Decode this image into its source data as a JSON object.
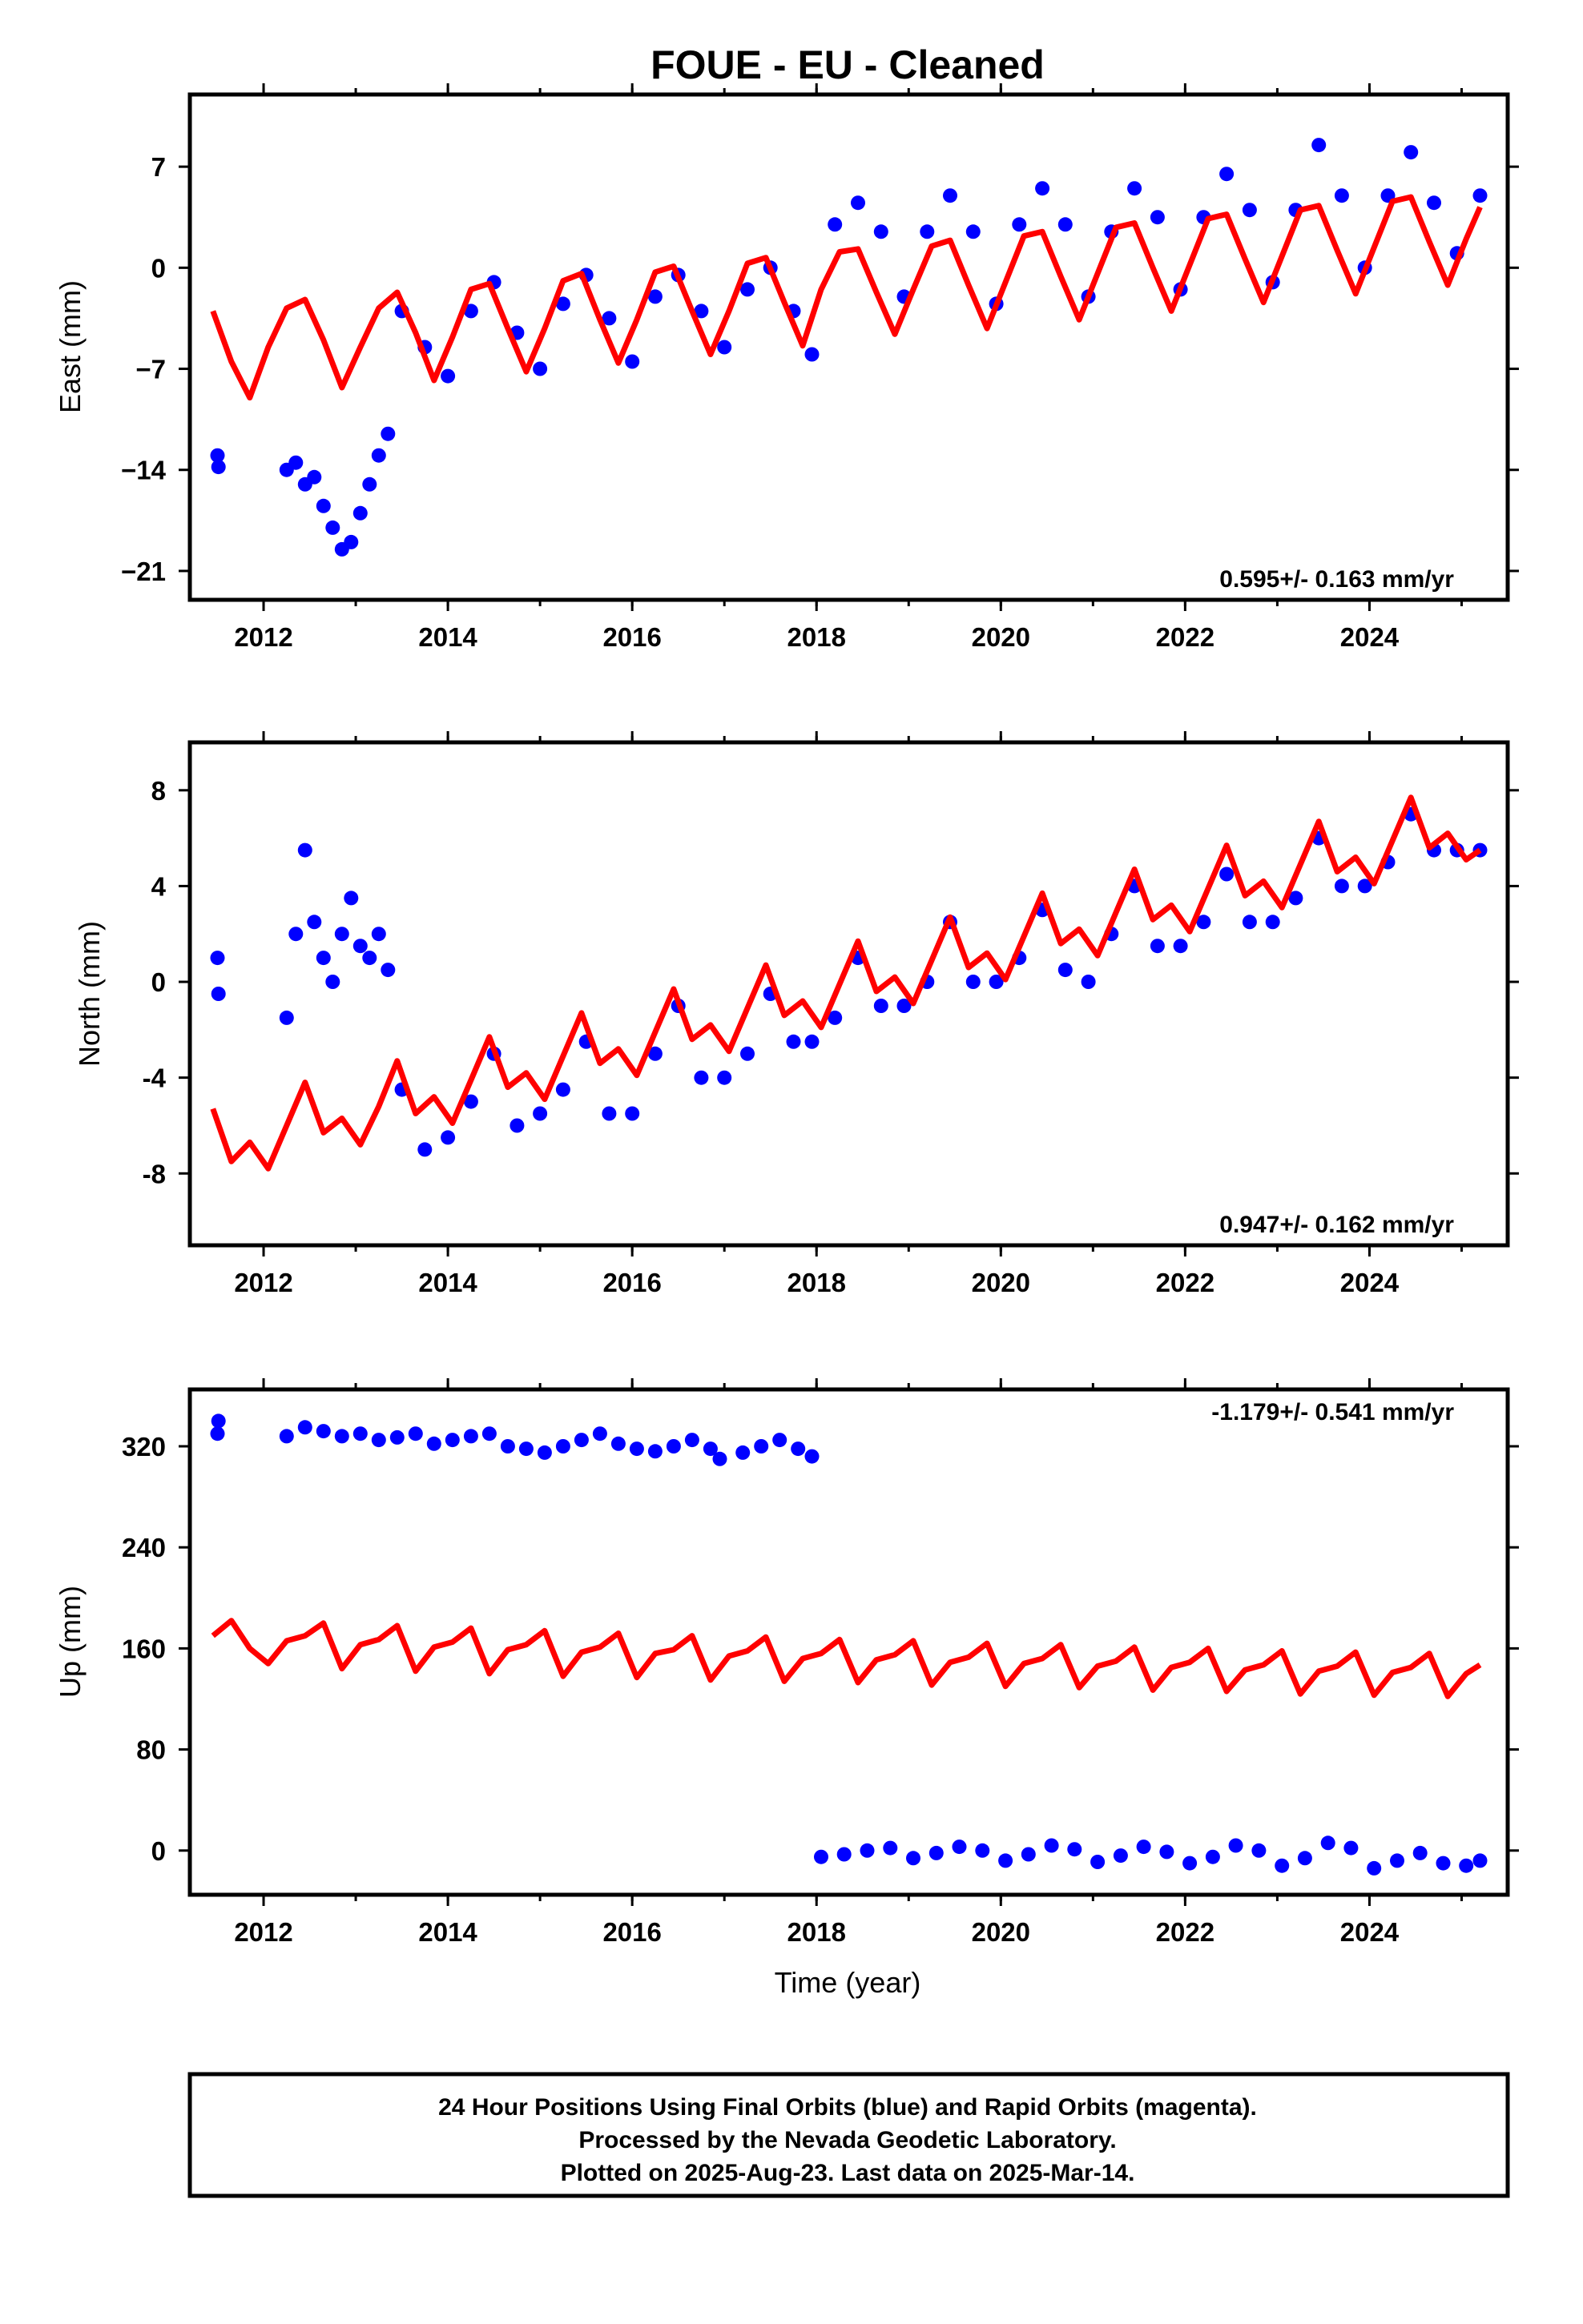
{
  "title": "FOUE  - EU - Cleaned",
  "colors": {
    "points": "#0000ff",
    "model": "#ff0000",
    "frame": "#000000"
  },
  "footer": {
    "line1": "24 Hour Positions Using Final Orbits (blue) and Rapid Orbits (magenta).",
    "line2": "Processed by the Nevada Geodetic Laboratory.",
    "line3": "Plotted on 2025-Aug-23. Last data on 2025-Mar-14."
  },
  "chart_data": [
    {
      "type": "scatter",
      "name": "east",
      "ylabel": "East (mm)",
      "xlabel": "",
      "xlim": [
        2011.2,
        2025.5
      ],
      "ylim": [
        -23,
        12
      ],
      "xticks": [
        2012,
        2014,
        2016,
        2018,
        2020,
        2022,
        2024
      ],
      "yticks": [
        7,
        0,
        -7,
        -14,
        -21
      ],
      "ytick_labels": [
        "7",
        "0",
        "−7",
        "−14",
        "−21"
      ],
      "rate_text": "0.595+/- 0.163 mm/yr",
      "rate_position": "bottom-right",
      "series": [
        {
          "name": "daily positions",
          "kind": "points",
          "x": [
            2011.5,
            2011.51,
            2012.25,
            2012.35,
            2012.45,
            2012.55,
            2012.65,
            2012.75,
            2012.85,
            2012.95,
            2013.05,
            2013.15,
            2013.25,
            2013.35,
            2013.5,
            2013.75,
            2014.0,
            2014.25,
            2014.5,
            2014.75,
            2015.0,
            2015.25,
            2015.5,
            2015.75,
            2016.0,
            2016.25,
            2016.5,
            2016.75,
            2017.0,
            2017.25,
            2017.5,
            2017.75,
            2017.95,
            2018.2,
            2018.45,
            2018.7,
            2018.95,
            2019.2,
            2019.45,
            2019.7,
            2019.95,
            2020.2,
            2020.45,
            2020.7,
            2020.95,
            2021.2,
            2021.45,
            2021.7,
            2021.95,
            2022.2,
            2022.45,
            2022.7,
            2022.95,
            2023.2,
            2023.45,
            2023.7,
            2023.95,
            2024.2,
            2024.45,
            2024.7,
            2024.95,
            2025.2
          ],
          "y": [
            -13.0,
            -13.8,
            -14.0,
            -13.5,
            -15.0,
            -14.5,
            -16.5,
            -18.0,
            -19.5,
            -19.0,
            -17.0,
            -15.0,
            -13.0,
            -11.5,
            -3.0,
            -5.5,
            -7.5,
            -3.0,
            -1.0,
            -4.5,
            -7.0,
            -2.5,
            -0.5,
            -3.5,
            -6.5,
            -2.0,
            -0.5,
            -3.0,
            -5.5,
            -1.5,
            0.0,
            -3.0,
            -6.0,
            3.0,
            4.5,
            2.5,
            -2.0,
            2.5,
            5.0,
            2.5,
            -2.5,
            3.0,
            5.5,
            3.0,
            -2.0,
            2.5,
            5.5,
            3.5,
            -1.5,
            3.5,
            6.5,
            4.0,
            -1.0,
            4.0,
            8.5,
            5.0,
            0.0,
            5.0,
            8.0,
            4.5,
            1.0,
            5.0
          ]
        },
        {
          "name": "model",
          "kind": "line",
          "x": [
            2011.45,
            2011.65,
            2011.85,
            2012.05,
            2012.25,
            2012.45,
            2012.65,
            2012.85,
            2013.05,
            2013.25,
            2013.45,
            2013.65,
            2013.85,
            2014.05,
            2014.25,
            2014.45,
            2014.65,
            2014.85,
            2015.05,
            2015.25,
            2015.45,
            2015.65,
            2015.85,
            2016.05,
            2016.25,
            2016.45,
            2016.65,
            2016.85,
            2017.05,
            2017.25,
            2017.45,
            2017.65,
            2017.85,
            2018.05,
            2018.25,
            2018.45,
            2018.65,
            2018.85,
            2019.05,
            2019.25,
            2019.45,
            2019.65,
            2019.85,
            2020.05,
            2020.25,
            2020.45,
            2020.65,
            2020.85,
            2021.05,
            2021.25,
            2021.45,
            2021.65,
            2021.85,
            2022.05,
            2022.25,
            2022.45,
            2022.65,
            2022.85,
            2023.05,
            2023.25,
            2023.45,
            2023.65,
            2023.85,
            2024.05,
            2024.25,
            2024.45,
            2024.65,
            2024.85,
            2025.05,
            2025.2
          ],
          "y": [
            -3.0,
            -6.5,
            -9.0,
            -5.5,
            -2.8,
            -2.2,
            -5.0,
            -8.3,
            -5.5,
            -2.8,
            -1.7,
            -4.5,
            -7.8,
            -4.8,
            -1.5,
            -1.1,
            -4.2,
            -7.2,
            -4.2,
            -0.9,
            -0.4,
            -3.6,
            -6.6,
            -3.6,
            -0.3,
            0.1,
            -3.0,
            -6.0,
            -3.0,
            0.3,
            0.7,
            -2.4,
            -5.4,
            -1.5,
            1.1,
            1.3,
            -1.7,
            -4.6,
            -1.5,
            1.5,
            1.9,
            -1.2,
            -4.2,
            -1.0,
            2.2,
            2.5,
            -0.6,
            -3.6,
            -0.4,
            2.8,
            3.1,
            0.0,
            -3.0,
            0.2,
            3.4,
            3.7,
            0.6,
            -2.4,
            0.8,
            4.0,
            4.3,
            1.2,
            -1.8,
            1.4,
            4.6,
            4.9,
            1.8,
            -1.2,
            2.0,
            4.2
          ]
        }
      ]
    },
    {
      "type": "scatter",
      "name": "north",
      "ylabel": "North (mm)",
      "xlabel": "",
      "xlim": [
        2011.2,
        2025.5
      ],
      "ylim": [
        -11,
        10
      ],
      "xticks": [
        2012,
        2014,
        2016,
        2018,
        2020,
        2022,
        2024
      ],
      "yticks": [
        8,
        4,
        0,
        -4,
        -8
      ],
      "ytick_labels": [
        "8",
        "4",
        "0",
        "-4",
        "-8"
      ],
      "rate_text": "0.947+/- 0.162 mm/yr",
      "rate_position": "bottom-right",
      "series": [
        {
          "name": "daily positions",
          "kind": "points",
          "x": [
            2011.5,
            2011.51,
            2012.25,
            2012.35,
            2012.45,
            2012.55,
            2012.65,
            2012.75,
            2012.85,
            2012.95,
            2013.05,
            2013.15,
            2013.25,
            2013.35,
            2013.5,
            2013.75,
            2014.0,
            2014.25,
            2014.5,
            2014.75,
            2015.0,
            2015.25,
            2015.5,
            2015.75,
            2016.0,
            2016.25,
            2016.5,
            2016.75,
            2017.0,
            2017.25,
            2017.5,
            2017.75,
            2017.95,
            2018.2,
            2018.45,
            2018.7,
            2018.95,
            2019.2,
            2019.45,
            2019.7,
            2019.95,
            2020.2,
            2020.45,
            2020.7,
            2020.95,
            2021.2,
            2021.45,
            2021.7,
            2021.95,
            2022.2,
            2022.45,
            2022.7,
            2022.95,
            2023.2,
            2023.45,
            2023.7,
            2023.95,
            2024.2,
            2024.45,
            2024.7,
            2024.95,
            2025.2
          ],
          "y": [
            1.0,
            -0.5,
            -1.5,
            2.0,
            5.5,
            2.5,
            1.0,
            0.0,
            2.0,
            3.5,
            1.5,
            1.0,
            2.0,
            0.5,
            -4.5,
            -7.0,
            -6.5,
            -5.0,
            -3.0,
            -6.0,
            -5.5,
            -4.5,
            -2.5,
            -5.5,
            -5.5,
            -3.0,
            -1.0,
            -4.0,
            -4.0,
            -3.0,
            -0.5,
            -2.5,
            -2.5,
            -1.5,
            1.0,
            -1.0,
            -1.0,
            0.0,
            2.5,
            0.0,
            0.0,
            1.0,
            3.0,
            0.5,
            0.0,
            2.0,
            4.0,
            1.5,
            1.5,
            2.5,
            4.5,
            2.5,
            2.5,
            3.5,
            6.0,
            4.0,
            4.0,
            5.0,
            7.0,
            5.5,
            5.5,
            5.5
          ]
        },
        {
          "name": "model",
          "kind": "line",
          "x": [
            2011.45,
            2011.65,
            2011.85,
            2012.05,
            2012.25,
            2012.45,
            2012.65,
            2012.85,
            2013.05,
            2013.25,
            2013.45,
            2013.65,
            2013.85,
            2014.05,
            2014.25,
            2014.45,
            2014.65,
            2014.85,
            2015.05,
            2015.25,
            2015.45,
            2015.65,
            2015.85,
            2016.05,
            2016.25,
            2016.45,
            2016.65,
            2016.85,
            2017.05,
            2017.25,
            2017.45,
            2017.65,
            2017.85,
            2018.05,
            2018.25,
            2018.45,
            2018.65,
            2018.85,
            2019.05,
            2019.25,
            2019.45,
            2019.65,
            2019.85,
            2020.05,
            2020.25,
            2020.45,
            2020.65,
            2020.85,
            2021.05,
            2021.25,
            2021.45,
            2021.65,
            2021.85,
            2022.05,
            2022.25,
            2022.45,
            2022.65,
            2022.85,
            2023.05,
            2023.25,
            2023.45,
            2023.65,
            2023.85,
            2024.05,
            2024.25,
            2024.45,
            2024.65,
            2024.85,
            2025.05,
            2025.2
          ],
          "y": [
            -5.3,
            -7.5,
            -6.7,
            -7.8,
            -6.0,
            -4.2,
            -6.3,
            -5.7,
            -6.8,
            -5.2,
            -3.3,
            -5.5,
            -4.8,
            -5.9,
            -4.1,
            -2.3,
            -4.4,
            -3.8,
            -4.9,
            -3.1,
            -1.3,
            -3.4,
            -2.8,
            -3.9,
            -2.1,
            -0.3,
            -2.4,
            -1.8,
            -2.9,
            -1.1,
            0.7,
            -1.4,
            -0.8,
            -1.9,
            -0.1,
            1.7,
            -0.4,
            0.2,
            -0.9,
            0.9,
            2.7,
            0.6,
            1.2,
            0.1,
            1.9,
            3.7,
            1.6,
            2.2,
            1.1,
            2.9,
            4.7,
            2.6,
            3.2,
            2.1,
            3.9,
            5.7,
            3.6,
            4.2,
            3.1,
            4.9,
            6.7,
            4.6,
            5.2,
            4.1,
            5.9,
            7.7,
            5.6,
            6.2,
            5.1,
            5.5
          ]
        }
      ]
    },
    {
      "type": "scatter",
      "name": "up",
      "ylabel": "Up (mm)",
      "xlabel": "Time (year)",
      "xlim": [
        2011.2,
        2025.5
      ],
      "ylim": [
        -35,
        365
      ],
      "xticks": [
        2012,
        2014,
        2016,
        2018,
        2020,
        2022,
        2024
      ],
      "yticks": [
        320,
        240,
        160,
        80,
        0
      ],
      "ytick_labels": [
        "320",
        "240",
        "160",
        "80",
        "0"
      ],
      "rate_text": "-1.179+/- 0.541 mm/yr",
      "rate_position": "top-right",
      "series": [
        {
          "name": "daily positions",
          "kind": "points",
          "x": [
            2011.5,
            2011.51,
            2012.25,
            2012.45,
            2012.65,
            2012.85,
            2013.05,
            2013.25,
            2013.45,
            2013.65,
            2013.85,
            2014.05,
            2014.25,
            2014.45,
            2014.65,
            2014.85,
            2015.05,
            2015.25,
            2015.45,
            2015.65,
            2015.85,
            2016.05,
            2016.25,
            2016.45,
            2016.65,
            2016.85,
            2016.95,
            2017.2,
            2017.4,
            2017.6,
            2017.8,
            2017.95,
            2018.05,
            2018.3,
            2018.55,
            2018.8,
            2019.05,
            2019.3,
            2019.55,
            2019.8,
            2020.05,
            2020.3,
            2020.55,
            2020.8,
            2021.05,
            2021.3,
            2021.55,
            2021.8,
            2022.05,
            2022.3,
            2022.55,
            2022.8,
            2023.05,
            2023.3,
            2023.55,
            2023.8,
            2024.05,
            2024.3,
            2024.55,
            2024.8,
            2025.05,
            2025.2
          ],
          "y": [
            330,
            340,
            328,
            335,
            332,
            328,
            330,
            325,
            327,
            330,
            322,
            325,
            328,
            330,
            320,
            318,
            315,
            320,
            325,
            330,
            322,
            318,
            316,
            320,
            325,
            318,
            310,
            315,
            320,
            325,
            318,
            312,
            -5,
            -3,
            0,
            2,
            -6,
            -2,
            3,
            0,
            -8,
            -3,
            4,
            1,
            -9,
            -4,
            3,
            -1,
            -10,
            -5,
            4,
            0,
            -12,
            -6,
            6,
            2,
            -14,
            -8,
            -2,
            -10,
            -12,
            -8
          ]
        },
        {
          "name": "model",
          "kind": "line",
          "x": [
            2011.45,
            2011.65,
            2011.85,
            2012.05,
            2012.25,
            2012.45,
            2012.65,
            2012.85,
            2013.05,
            2013.25,
            2013.45,
            2013.65,
            2013.85,
            2014.05,
            2014.25,
            2014.45,
            2014.65,
            2014.85,
            2015.05,
            2015.25,
            2015.45,
            2015.65,
            2015.85,
            2016.05,
            2016.25,
            2016.45,
            2016.65,
            2016.85,
            2017.05,
            2017.25,
            2017.45,
            2017.65,
            2017.85,
            2018.05,
            2018.25,
            2018.45,
            2018.65,
            2018.85,
            2019.05,
            2019.25,
            2019.45,
            2019.65,
            2019.85,
            2020.05,
            2020.25,
            2020.45,
            2020.65,
            2020.85,
            2021.05,
            2021.25,
            2021.45,
            2021.65,
            2021.85,
            2022.05,
            2022.25,
            2022.45,
            2022.65,
            2022.85,
            2023.05,
            2023.25,
            2023.45,
            2023.65,
            2023.85,
            2024.05,
            2024.25,
            2024.45,
            2024.65,
            2024.85,
            2025.05,
            2025.2
          ],
          "y": [
            170,
            182,
            160,
            148,
            166,
            170,
            180,
            144,
            163,
            167,
            178,
            142,
            161,
            165,
            176,
            140,
            159,
            163,
            174,
            138,
            157,
            161,
            172,
            137,
            156,
            159,
            170,
            135,
            154,
            158,
            169,
            134,
            152,
            156,
            167,
            133,
            151,
            155,
            166,
            131,
            149,
            153,
            164,
            130,
            148,
            152,
            163,
            129,
            146,
            150,
            161,
            127,
            145,
            149,
            160,
            126,
            143,
            147,
            158,
            124,
            142,
            146,
            157,
            123,
            141,
            145,
            156,
            122,
            140,
            147
          ]
        }
      ]
    }
  ]
}
